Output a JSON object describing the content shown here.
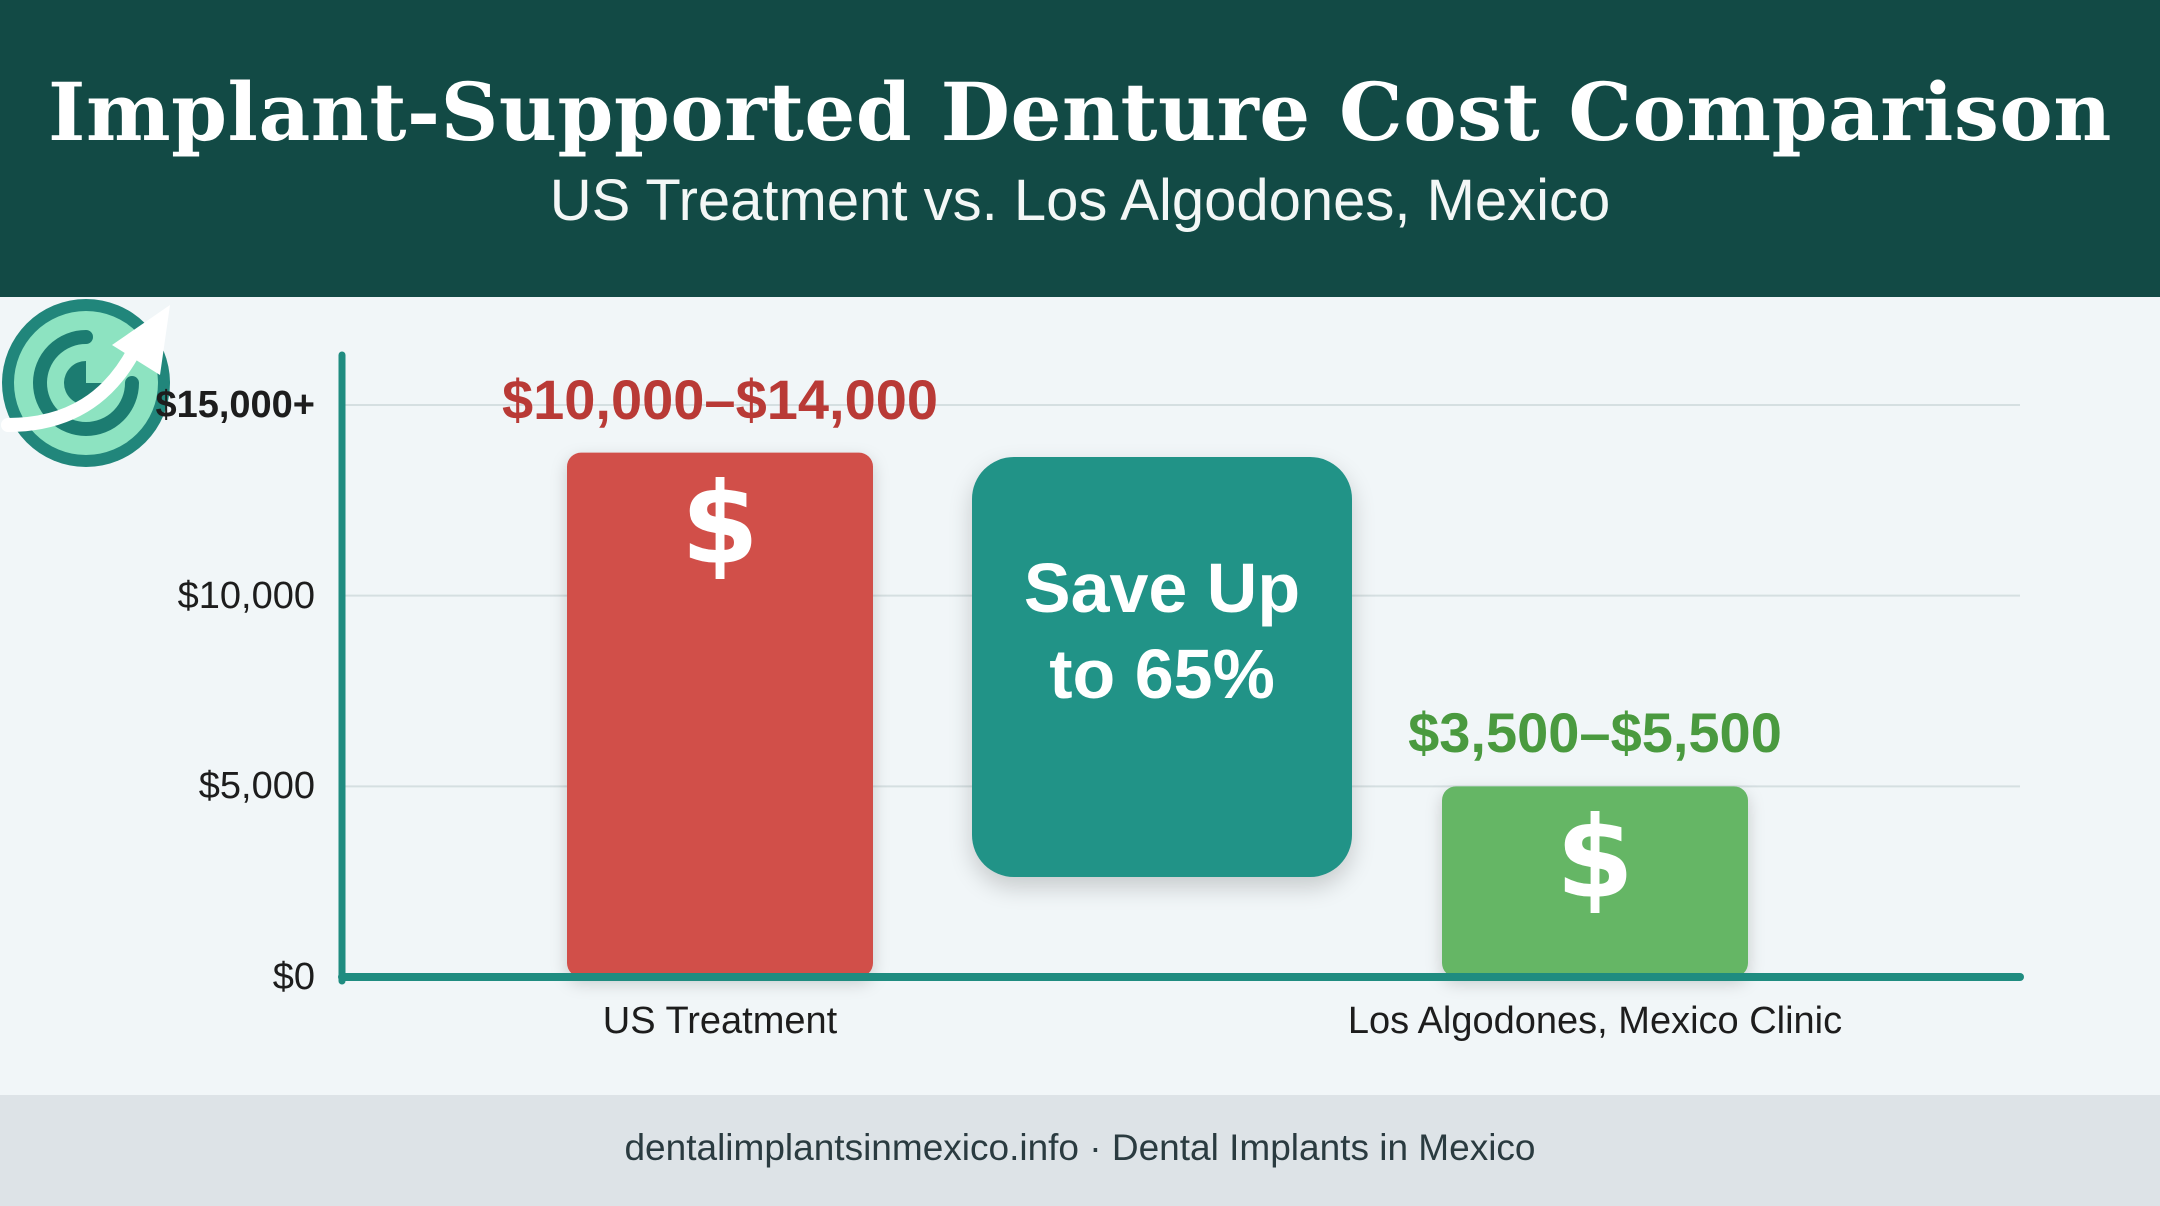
{
  "header": {
    "title": "Implant-Supported Denture Cost Comparison",
    "subtitle": "US Treatment vs. Los Algodones, Mexico"
  },
  "chart_data": {
    "type": "bar",
    "categories": [
      "US Treatment",
      "Los Algodones, Mexico Clinic"
    ],
    "values": [
      13750,
      5000
    ],
    "value_labels": [
      "$10,000–$14,000",
      "$3,500–$5,500"
    ],
    "colors": [
      "#d14f4a",
      "#65b665"
    ],
    "label_colors": [
      "#b93a36",
      "#4a9a3f"
    ],
    "ylim": [
      0,
      15000
    ],
    "yticks": [
      {
        "value": 0,
        "label": "$0"
      },
      {
        "value": 5000,
        "label": "$5,000"
      },
      {
        "value": 10000,
        "label": "$10,000"
      },
      {
        "value": 15000,
        "label": "$15,000+"
      }
    ],
    "grid": true,
    "bar_icon": "dollar-sign-icon",
    "bar_icon_glyph": "$",
    "axis_color": "#1f8c80",
    "callout": {
      "text_line1": "Save Up",
      "text_line2": "to 65%",
      "badge_icon": "savings-dial-icon",
      "arrow_icon": "trend-arrow-icon"
    }
  },
  "footer": {
    "text": "dentalimplantsinmexico.info · Dental Implants in Mexico"
  }
}
